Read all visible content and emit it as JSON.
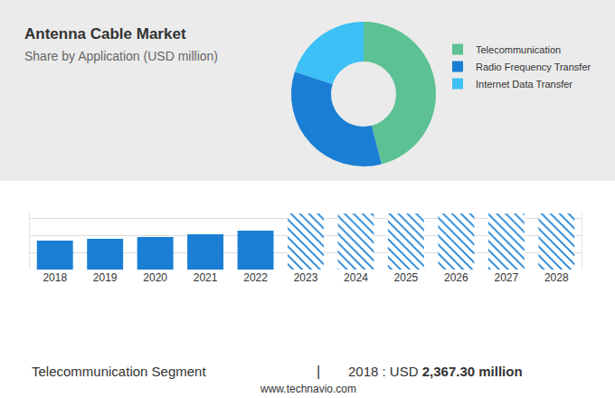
{
  "chart_data": [
    {
      "type": "pie",
      "title": "Antenna Cable Market",
      "subtitle": "Share by Application (USD million)",
      "categories": [
        "Telecommunication",
        "Radio Frequency Transfer",
        "Internet Data Transfer"
      ],
      "values": [
        46,
        34,
        20
      ],
      "colors": [
        "#5cc194",
        "#1a7fd4",
        "#3cc0f5"
      ],
      "legend": "right"
    },
    {
      "type": "bar",
      "categories": [
        "2018",
        "2019",
        "2020",
        "2021",
        "2022",
        "2023",
        "2024",
        "2025",
        "2026",
        "2027",
        "2028"
      ],
      "series": [
        {
          "color": "#1a7fd4",
          "marker": "solid",
          "values": [
            2367.3,
            2516,
            2664,
            2886,
            3182,
            null,
            null,
            null,
            null,
            null,
            null
          ]
        },
        {
          "color": "#1a7fd4",
          "marker": "hatched",
          "values": [
            null,
            null,
            null,
            null,
            null,
            4588,
            4588,
            4588,
            4588,
            4588,
            4588
          ]
        }
      ],
      "ylim": [
        0,
        4700
      ],
      "yticks": [
        0,
        1400,
        2800,
        4200
      ],
      "grid": true,
      "tick_labels": "x"
    }
  ],
  "footer": {
    "label": "Telecommunication Segment",
    "separator": "|",
    "stat_prefix": "2018 : USD",
    "stat_value": "2,367.30 million",
    "source": "www.technavio.com"
  }
}
